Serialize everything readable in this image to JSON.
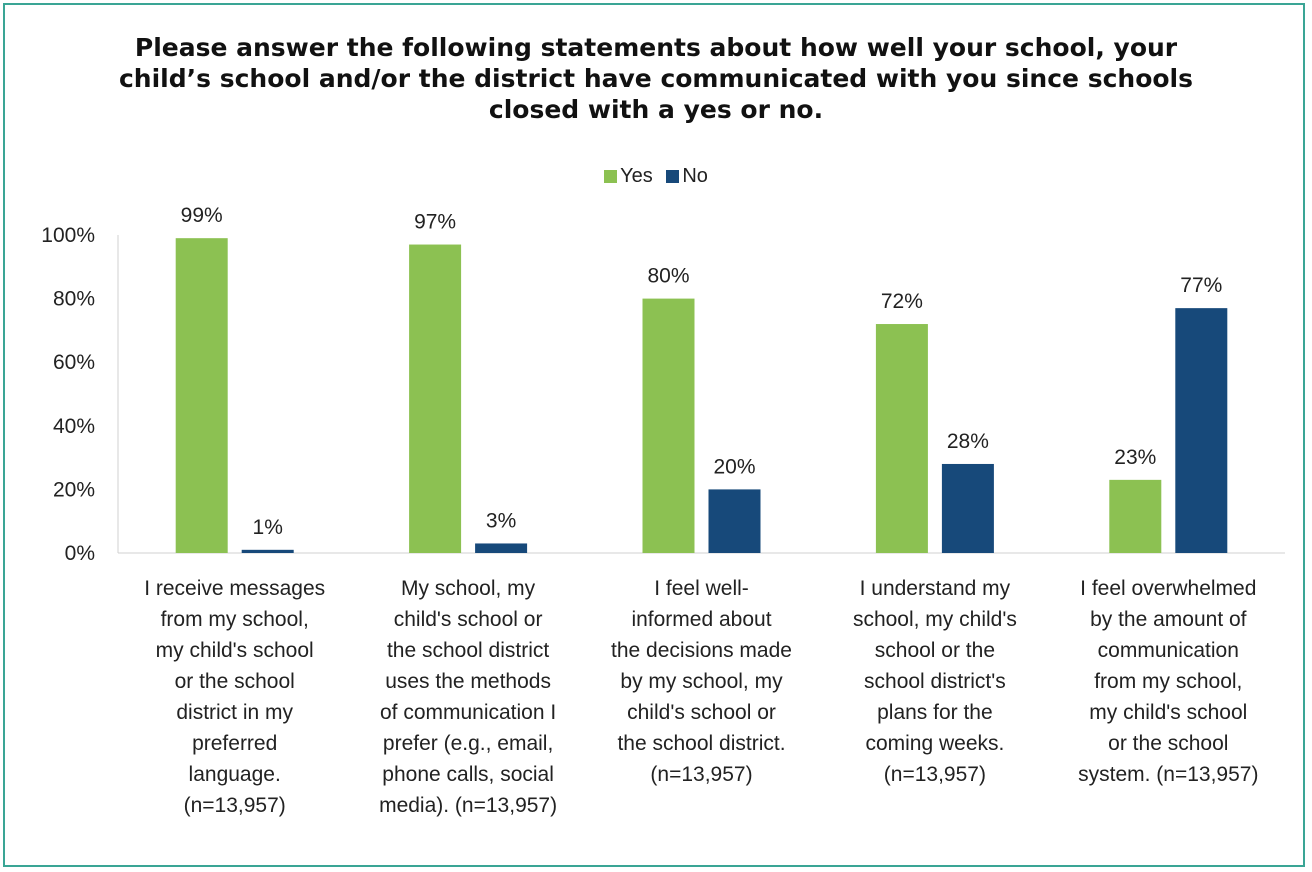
{
  "chart_data": {
    "type": "bar",
    "title": "Please answer the following statements about how well your school, your child’s school and/or the district have communicated with you since schools closed with a yes or no.",
    "categories": [
      "I receive messages from my school, my child's school or the school district in my preferred language. (n=13,957)",
      "My school, my child's school or the school district uses the methods of communication I prefer (e.g., email, phone calls, social media). (n=13,957)",
      "I feel well-informed about the decisions made by my school, my child's school or the school district. (n=13,957)",
      "I understand my school, my child's school or the school district's plans for the coming weeks. (n=13,957)",
      "I feel overwhelmed by the amount of communication from my school, my child's school or the school system. (n=13,957)"
    ],
    "category_lines": [
      [
        "I receive messages",
        "from my school,",
        "my child's school",
        "or the school",
        "district in my",
        "preferred",
        "language.",
        "(n=13,957)"
      ],
      [
        "My school, my",
        "child's school or",
        "the school district",
        "uses the methods",
        "of communication I",
        "prefer (e.g., email,",
        "phone calls, social",
        "media). (n=13,957)"
      ],
      [
        "I feel well-",
        "informed about",
        "the decisions made",
        "by my school, my",
        "child's school or",
        "the school district.",
        "(n=13,957)"
      ],
      [
        "I understand my",
        "school, my child's",
        "school or the",
        "school district's",
        "plans for the",
        "coming weeks.",
        "(n=13,957)"
      ],
      [
        "I feel overwhelmed",
        "by the amount of",
        "communication",
        "from my school,",
        "my child's school",
        "or the school",
        "system. (n=13,957)"
      ]
    ],
    "series": [
      {
        "name": "Yes",
        "color": "#8cc152",
        "values": [
          99,
          97,
          80,
          72,
          23
        ]
      },
      {
        "name": "No",
        "color": "#17497a",
        "values": [
          1,
          3,
          20,
          28,
          77
        ]
      }
    ],
    "data_labels": [
      [
        "99%",
        "97%",
        "80%",
        "72%",
        "23%"
      ],
      [
        "1%",
        "3%",
        "20%",
        "28%",
        "77%"
      ]
    ],
    "y_ticks": [
      0,
      20,
      40,
      60,
      80,
      100
    ],
    "y_tick_labels": [
      "0%",
      "20%",
      "40%",
      "60%",
      "80%",
      "100%"
    ],
    "ylim": [
      0,
      100
    ],
    "grid": false,
    "legend_position": "top",
    "xlabel": "",
    "ylabel": ""
  }
}
